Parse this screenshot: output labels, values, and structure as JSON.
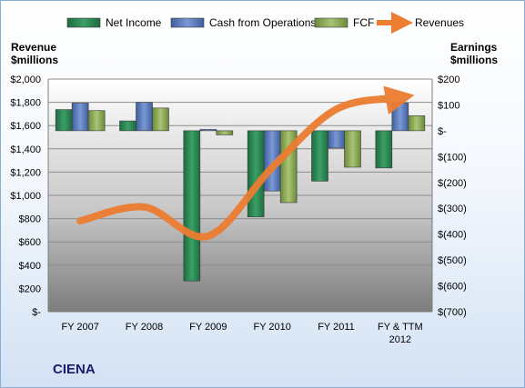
{
  "chart_data": {
    "type": "bar",
    "company": "CIENA",
    "categories": [
      "FY 2007",
      "FY 2008",
      "FY 2009",
      "FY 2010",
      "FY 2011",
      "FY & TTM 2012"
    ],
    "left_axis": {
      "title_lines": [
        "Revenue",
        "$millions"
      ],
      "ylim": [
        0,
        2000
      ],
      "ticks": [
        0,
        200,
        400,
        600,
        800,
        1000,
        1200,
        1400,
        1600,
        1800,
        2000
      ],
      "tick_labels": [
        "$-",
        "$200",
        "$400",
        "$600",
        "$800",
        "$1,000",
        "$1,200",
        "$1,400",
        "$1,600",
        "$1,800",
        "$2,000"
      ]
    },
    "right_axis": {
      "title_lines": [
        "Earnings",
        "$millions"
      ],
      "ylim": [
        -700,
        200
      ],
      "ticks": [
        -700,
        -600,
        -500,
        -400,
        -300,
        -200,
        -100,
        0,
        100,
        200
      ],
      "tick_labels": [
        "$(700)",
        "$(600)",
        "$(500)",
        "$(400)",
        "$(300)",
        "$(200)",
        "$(100)",
        "$-",
        "$100",
        "$200"
      ]
    },
    "series": [
      {
        "name": "Net Income",
        "type": "bar",
        "axis": "right",
        "color": "#2e8b57",
        "values": [
          82,
          38,
          -581,
          -333,
          -195,
          -144
        ]
      },
      {
        "name": "Cash from Operations",
        "type": "bar",
        "axis": "right",
        "color": "#5b7cc4",
        "values": [
          107,
          110,
          5,
          -233,
          -67,
          107
        ]
      },
      {
        "name": "FCF",
        "type": "bar",
        "axis": "right",
        "color": "#8fae5a",
        "values": [
          78,
          88,
          -16,
          -278,
          -141,
          58
        ]
      },
      {
        "name": "Revenues",
        "type": "line",
        "axis": "left",
        "color": "#ec7d31",
        "values": [
          780,
          900,
          650,
          1240,
          1740,
          1840
        ]
      }
    ],
    "grid": true,
    "legend_position": "top"
  },
  "legend": [
    {
      "label": "Net Income",
      "color": "#2e8b57",
      "kind": "bar"
    },
    {
      "label": "Cash from Operations",
      "color": "#5b7cc4",
      "kind": "bar"
    },
    {
      "label": "FCF",
      "color": "#8fae5a",
      "kind": "bar"
    },
    {
      "label": "Revenues",
      "color": "#ec7d31",
      "kind": "arrow"
    }
  ]
}
